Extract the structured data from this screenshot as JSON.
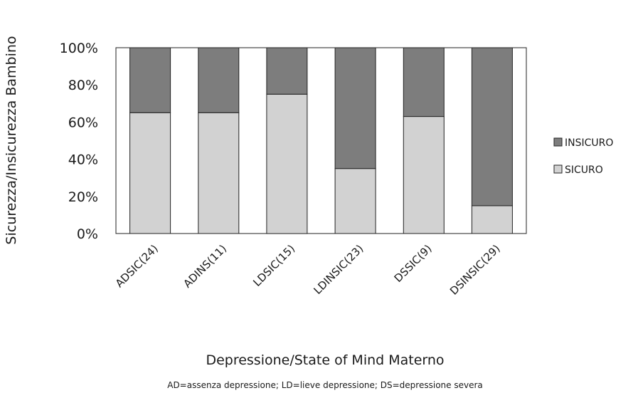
{
  "chart_data": {
    "type": "bar",
    "stacked": true,
    "percent_stacked": true,
    "categories": [
      "ADSIC(24)",
      "ADINS(11)",
      "LDSIC(15)",
      "LDINSIC(23)",
      "DSSIC(9)",
      "DSINSIC(29)"
    ],
    "series": [
      {
        "name": "SICURO",
        "values": [
          65,
          65,
          75,
          35,
          63,
          15
        ],
        "color": "#d2d2d2"
      },
      {
        "name": "INSICURO",
        "values": [
          35,
          35,
          25,
          65,
          37,
          85
        ],
        "color": "#7d7d7d"
      }
    ],
    "legend_order": [
      "INSICURO",
      "SICURO"
    ],
    "legend_position": "right",
    "ylim": [
      0,
      100
    ],
    "yticks": [
      "0%",
      "20%",
      "40%",
      "60%",
      "80%",
      "100%"
    ],
    "ylabel": "Sicurezza/Insicurezza Bambino",
    "xlabel": "Depressione/State of Mind Materno",
    "note": "AD=assenza depressione; LD=lieve depressione; DS=depressione severa",
    "grid": false
  }
}
